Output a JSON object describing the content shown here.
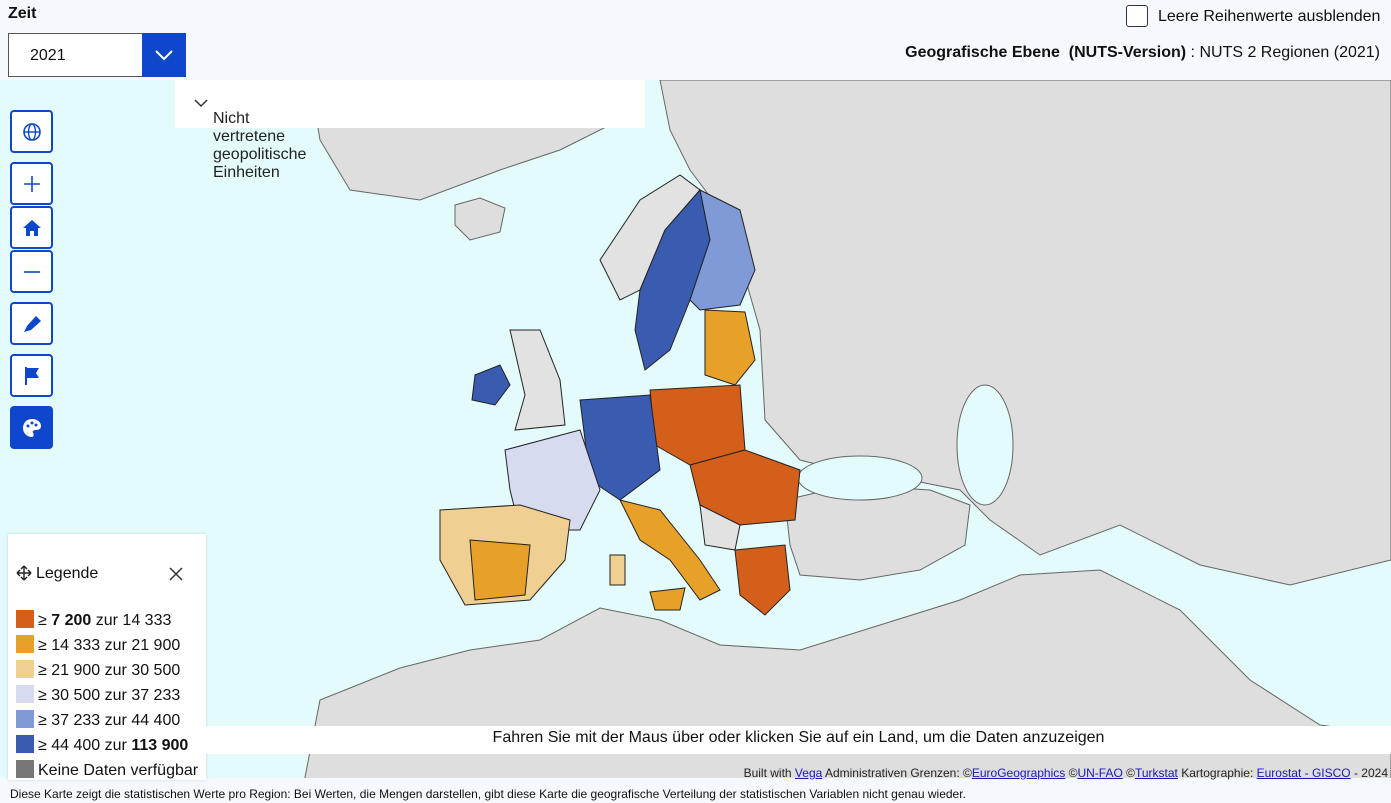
{
  "header": {
    "time_label": "Zeit",
    "time_value": "2021",
    "checkbox_label": "Leere Reihenwerte ausblenden",
    "geo_level_label": "Geografische Ebene  (NUTS-Version)",
    "geo_level_sep": ":",
    "geo_level_value": "NUTS 2 Regionen (2021)"
  },
  "panel": {
    "label": "Nicht vertretene geopolitische Einheiten"
  },
  "legend": {
    "title": "Legende",
    "items": [
      {
        "prefix": "≥",
        "from": "7 200",
        "joiner": "zur",
        "to": "14 333",
        "color": "#d45f1a"
      },
      {
        "prefix": "≥",
        "from": "14 333",
        "joiner": "zur",
        "to": "21 900",
        "color": "#e8a128"
      },
      {
        "prefix": "≥",
        "from": "21 900",
        "joiner": "zur",
        "to": "30 500",
        "color": "#f0cf93"
      },
      {
        "prefix": "≥",
        "from": "30 500",
        "joiner": "zur",
        "to": "37 233",
        "color": "#d6dbf0"
      },
      {
        "prefix": "≥",
        "from": "37 233",
        "joiner": "zur",
        "to": "44 400",
        "color": "#7f9ad6"
      },
      {
        "prefix": "≥",
        "from": "44 400",
        "joiner": "zur",
        "to": "113 900",
        "color": "#3a5cb0"
      }
    ],
    "no_data": {
      "label": "Keine Daten verfügbar",
      "color": "#777777"
    }
  },
  "hint": "Fahren Sie mit der Maus über oder klicken Sie auf ein Land, um die Daten anzuzeigen",
  "attribution": [
    {
      "text": "Built with "
    },
    {
      "text": "Vega",
      "link": true
    },
    {
      "text": " Administrativen Grenzen: ©"
    },
    {
      "text": "EuroGeographics",
      "link": true
    },
    {
      "text": " ©"
    },
    {
      "text": "UN-FAO",
      "link": true
    },
    {
      "text": " ©"
    },
    {
      "text": "Turkstat",
      "link": true
    },
    {
      "text": " Kartographie: "
    },
    {
      "text": "Eurostat - GISCO",
      "link": true
    },
    {
      "text": " - 2024"
    }
  ],
  "footer": "Diese Karte zeigt die statistischen Werte pro Region: Bei Werten, die Mengen darstellen, gibt diese Karte die geografische Verteilung der statistischen Variablen nicht genau wieder."
}
